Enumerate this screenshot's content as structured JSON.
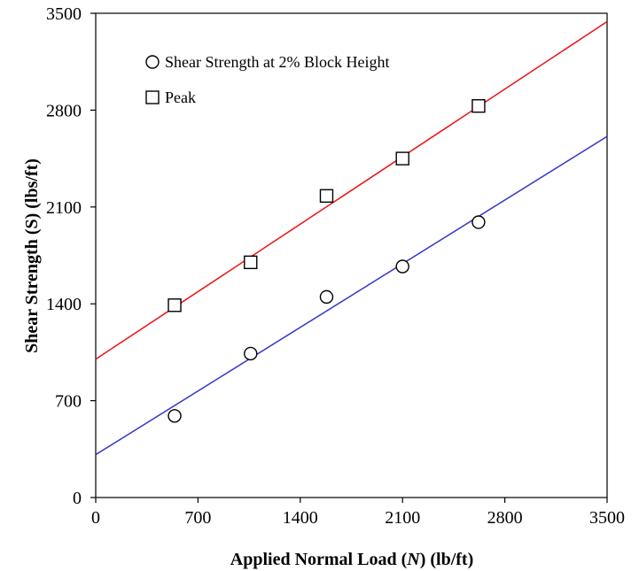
{
  "chart_data": {
    "type": "scatter",
    "xlabel_parts": [
      "Applied Normal Load (",
      "N",
      ") (lb/ft)"
    ],
    "ylabel": "Shear Strength (S) (lbs/ft)",
    "xlim": [
      0,
      3500
    ],
    "ylim": [
      0,
      3500
    ],
    "xticks": [
      0,
      700,
      1400,
      2100,
      2800,
      3500
    ],
    "yticks": [
      0,
      700,
      1400,
      2100,
      2800,
      3500
    ],
    "grid": false,
    "legend_position": "top-left",
    "series": [
      {
        "name": "Shear Strength at 2% Block Height",
        "marker": "circle",
        "x": [
          540,
          1060,
          1580,
          2100,
          2620
        ],
        "y": [
          590,
          1040,
          1450,
          1670,
          1990
        ],
        "fit": {
          "x": [
            0,
            3500
          ],
          "y": [
            310,
            2610
          ]
        },
        "fit_color": "#3333cc"
      },
      {
        "name": "Peak",
        "marker": "square",
        "x": [
          540,
          1060,
          1580,
          2100,
          2620
        ],
        "y": [
          1390,
          1700,
          2180,
          2450,
          2830
        ],
        "fit": {
          "x": [
            0,
            3500
          ],
          "y": [
            1000,
            3440
          ]
        },
        "fit_color": "#ee1111"
      }
    ]
  }
}
